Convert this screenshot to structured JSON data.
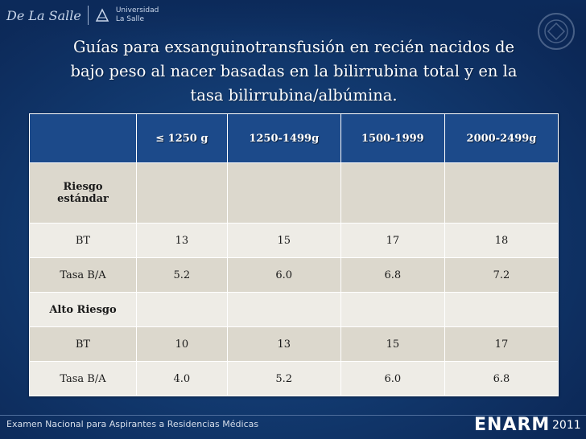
{
  "branding": {
    "logo_script": "De La Salle",
    "logo_university": "Universidad",
    "logo_university2": "La Salle"
  },
  "title": {
    "line1": "Guías para exsanguinotransfusión en recién nacidos de",
    "line2": "bajo peso al nacer basadas en la bilirrubina total y en la",
    "line3": "tasa bilirrubina/albúmina."
  },
  "table": {
    "columns": [
      "≤ 1250 g",
      "1250-1499g",
      "1500-1999",
      "2000-2499g"
    ],
    "rows": [
      {
        "label_a": "Riesgo",
        "label_b": "estándar",
        "values": [
          "",
          "",
          "",
          ""
        ]
      },
      {
        "label": "BT",
        "values": [
          "13",
          "15",
          "17",
          "18"
        ]
      },
      {
        "label": "Tasa B/A",
        "values": [
          "5.2",
          "6.0",
          "6.8",
          "7.2"
        ]
      },
      {
        "label": "Alto Riesgo",
        "values": [
          "",
          "",
          "",
          ""
        ]
      },
      {
        "label": "BT",
        "values": [
          "10",
          "13",
          "15",
          "17"
        ]
      },
      {
        "label": "Tasa B/A",
        "values": [
          "4.0",
          "5.2",
          "6.0",
          "6.8"
        ]
      }
    ]
  },
  "footer": {
    "text": "Examen Nacional para Aspirantes a Residencias Médicas",
    "brand": "ENARM",
    "year": "2011"
  },
  "colors": {
    "background": "#123a70",
    "header_row": "#1c4a8a",
    "row_dark": "#dcd8cd",
    "row_light": "#eeece6"
  }
}
